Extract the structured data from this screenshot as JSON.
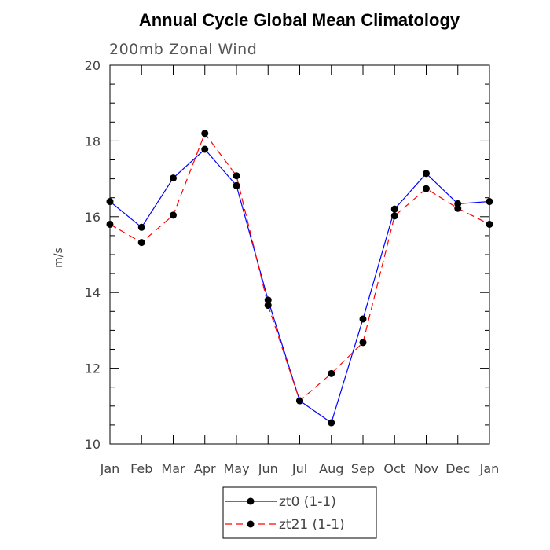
{
  "chart_data": {
    "type": "line",
    "title": "Annual Cycle Global Mean Climatology",
    "subtitle": "200mb Zonal Wind",
    "xlabel": "",
    "ylabel": "m/s",
    "categories": [
      "Jan",
      "Feb",
      "Mar",
      "Apr",
      "May",
      "Jun",
      "Jul",
      "Aug",
      "Sep",
      "Oct",
      "Nov",
      "Dec",
      "Jan"
    ],
    "ylim": [
      10,
      20
    ],
    "yticks": [
      10,
      12,
      14,
      16,
      18,
      20
    ],
    "yticklabels": [
      "10",
      "12",
      "14",
      "16",
      "18",
      "20"
    ],
    "grid": false,
    "legend_position": "bottom-center",
    "series": [
      {
        "name": "zt0 (1-1)",
        "color": "#0000ff",
        "line_style": "solid",
        "marker": "filled-circle",
        "values": [
          16.4,
          15.72,
          17.02,
          17.78,
          16.82,
          13.8,
          11.14,
          10.56,
          13.3,
          16.2,
          17.14,
          16.34,
          16.4
        ]
      },
      {
        "name": "zt21 (1-1)",
        "color": "#ff0000",
        "line_style": "dashed",
        "marker": "filled-circle",
        "values": [
          15.8,
          15.32,
          16.04,
          18.2,
          17.08,
          13.66,
          11.14,
          11.86,
          12.68,
          16.02,
          16.74,
          16.22,
          15.8
        ]
      }
    ]
  }
}
